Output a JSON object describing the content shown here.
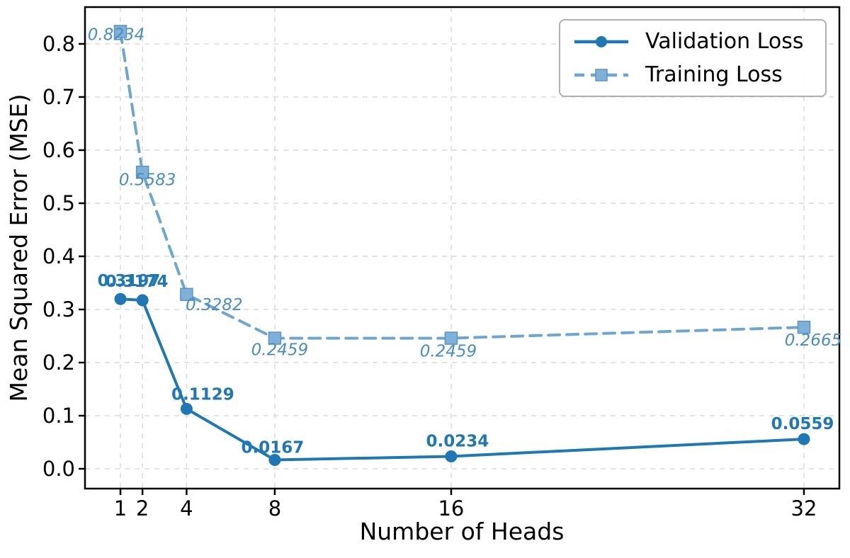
{
  "chart_data": {
    "type": "line",
    "title": "",
    "xlabel": "Number of Heads",
    "ylabel": "Mean Squared Error (MSE)",
    "x": [
      1,
      2,
      4,
      8,
      16,
      32
    ],
    "x_tick_labels": [
      "1",
      "2",
      "4",
      "8",
      "16",
      "32"
    ],
    "y_tick_labels": [
      "0.0",
      "0.1",
      "0.2",
      "0.3",
      "0.4",
      "0.5",
      "0.6",
      "0.7",
      "0.8"
    ],
    "y_tick_values": [
      0.0,
      0.1,
      0.2,
      0.3,
      0.4,
      0.5,
      0.6,
      0.7,
      0.8
    ],
    "xlim": [
      -0.607,
      33.607
    ],
    "ylim": [
      -0.0373,
      0.8693
    ],
    "grid": true,
    "legend_position": "upper right",
    "series": [
      {
        "name": "Validation Loss",
        "style": "solid",
        "marker": "circle",
        "color": "#1f77b4",
        "marker_fill": "#1f77b4",
        "marker_edge": "#1f77b4",
        "label_color": "#1f77b4",
        "label_style": "bold",
        "values": [
          0.3197,
          0.3174,
          0.1129,
          0.0167,
          0.0234,
          0.0559
        ],
        "point_labels": [
          "0.3197",
          "0.3174",
          "0.1129",
          "0.0167",
          "0.0234",
          "0.0559"
        ],
        "label_offsets": [
          [
            12,
            -26
          ],
          [
            -8,
            -27
          ],
          [
            23,
            -21
          ],
          [
            -3,
            -18
          ],
          [
            9,
            -22
          ],
          [
            -2,
            -22
          ]
        ]
      },
      {
        "name": "Training Loss",
        "style": "dashed",
        "marker": "square",
        "color": "#6ea6d0",
        "marker_fill": "#7fb0d8",
        "marker_edge": "#5b94c4",
        "label_color": "#4b8dc0",
        "label_style": "italic",
        "values": [
          0.8234,
          0.5583,
          0.3282,
          0.2459,
          0.2459,
          0.2665
        ],
        "point_labels": [
          "0.8234",
          "0.5583",
          "0.3282",
          "0.2459",
          "0.2459",
          "0.2665"
        ],
        "label_offsets": [
          [
            -6,
            4
          ],
          [
            7,
            10
          ],
          [
            39,
            14
          ],
          [
            7,
            16
          ],
          [
            -4,
            18
          ],
          [
            13,
            18
          ]
        ]
      }
    ],
    "colors": {
      "grid": "#d8d8d8",
      "axis": "#000000",
      "background": "#ffffff"
    }
  }
}
